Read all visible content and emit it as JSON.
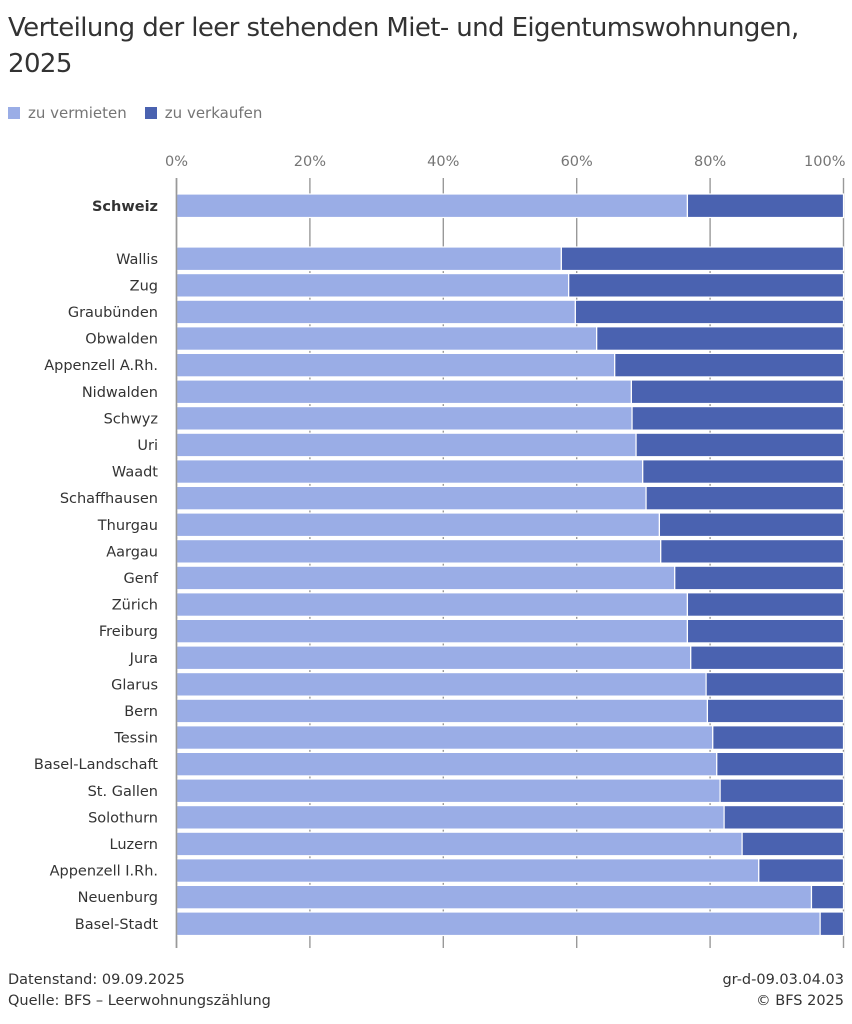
{
  "chart_data": {
    "type": "bar",
    "orientation": "horizontal",
    "stacked": true,
    "title": "Verteilung der leer stehenden Miet- und Eigentumswohnungen, 2025",
    "xlabel": "",
    "ylabel": "",
    "xlim": [
      0,
      100
    ],
    "x_ticks": [
      "0%",
      "20%",
      "40%",
      "60%",
      "80%",
      "100%"
    ],
    "grid": true,
    "legend_position": "top-left",
    "summary_category": "Schweiz",
    "categories": [
      "Schweiz",
      "Wallis",
      "Zug",
      "Graubünden",
      "Obwalden",
      "Appenzell A.Rh.",
      "Nidwalden",
      "Schwyz",
      "Uri",
      "Waadt",
      "Schaffhausen",
      "Thurgau",
      "Aargau",
      "Genf",
      "Zürich",
      "Freiburg",
      "Jura",
      "Glarus",
      "Bern",
      "Tessin",
      "Basel-Landschaft",
      "St. Gallen",
      "Solothurn",
      "Luzern",
      "Appenzell I.Rh.",
      "Neuenburg",
      "Basel-Stadt"
    ],
    "series": [
      {
        "name": "zu vermieten",
        "color": "#9aade6",
        "values": [
          76.6,
          57.7,
          58.8,
          59.8,
          63.0,
          65.7,
          68.2,
          68.3,
          68.9,
          69.9,
          70.4,
          72.4,
          72.6,
          74.7,
          76.6,
          76.6,
          77.1,
          79.4,
          79.6,
          80.4,
          81.0,
          81.5,
          82.1,
          84.8,
          87.3,
          95.2,
          96.5
        ]
      },
      {
        "name": "zu verkaufen",
        "color": "#4a62b0",
        "values": [
          23.4,
          42.3,
          41.2,
          40.2,
          37.0,
          34.3,
          31.8,
          31.7,
          31.1,
          30.1,
          29.6,
          27.6,
          27.4,
          25.3,
          23.4,
          23.4,
          22.9,
          20.6,
          20.4,
          19.6,
          19.0,
          18.5,
          17.9,
          15.2,
          12.7,
          4.8,
          3.5
        ]
      }
    ]
  },
  "legend": [
    {
      "label": "zu vermieten",
      "color": "#9aade6"
    },
    {
      "label": "zu verkaufen",
      "color": "#4a62b0"
    }
  ],
  "footer": {
    "datenstand": "Datenstand: 09.09.2025",
    "quelle": "Quelle: BFS – Leerwohnungszählung",
    "code": "gr-d-09.03.04.03",
    "copyright": "© BFS 2025"
  }
}
